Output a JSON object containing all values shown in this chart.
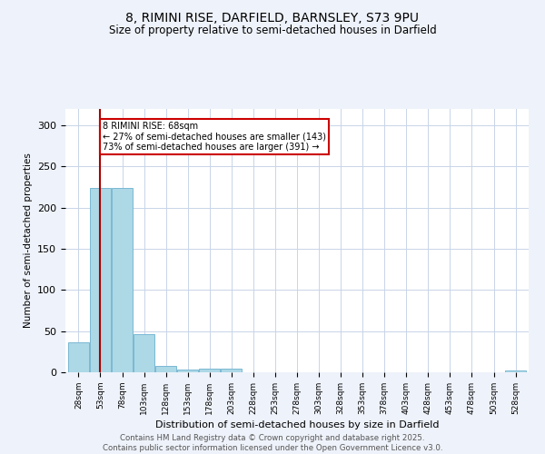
{
  "title_line1": "8, RIMINI RISE, DARFIELD, BARNSLEY, S73 9PU",
  "title_line2": "Size of property relative to semi-detached houses in Darfield",
  "xlabel": "Distribution of semi-detached houses by size in Darfield",
  "ylabel": "Number of semi-detached properties",
  "bar_color": "#add8e6",
  "bar_edge_color": "#7ab8d4",
  "property_line_color": "#aa0000",
  "annotation_text": "8 RIMINI RISE: 68sqm\n← 27% of semi-detached houses are smaller (143)\n73% of semi-detached houses are larger (391) →",
  "annotation_box_color": "#ffffff",
  "annotation_box_edge": "#cc0000",
  "categories": [
    "28sqm",
    "53sqm",
    "78sqm",
    "103sqm",
    "128sqm",
    "153sqm",
    "178sqm",
    "203sqm",
    "228sqm",
    "253sqm",
    "278sqm",
    "303sqm",
    "328sqm",
    "353sqm",
    "378sqm",
    "403sqm",
    "428sqm",
    "453sqm",
    "478sqm",
    "503sqm",
    "528sqm"
  ],
  "values": [
    36,
    224,
    224,
    46,
    8,
    3,
    4,
    4,
    0,
    0,
    0,
    0,
    0,
    0,
    0,
    0,
    0,
    0,
    0,
    0,
    2
  ],
  "ylim": [
    0,
    320
  ],
  "yticks": [
    0,
    50,
    100,
    150,
    200,
    250,
    300
  ],
  "property_bin_index": 1,
  "footer_line1": "Contains HM Land Registry data © Crown copyright and database right 2025.",
  "footer_line2": "Contains public sector information licensed under the Open Government Licence v3.0.",
  "bg_color": "#eef2fa",
  "plot_bg_color": "#ffffff",
  "grid_color": "#c8d4e8"
}
